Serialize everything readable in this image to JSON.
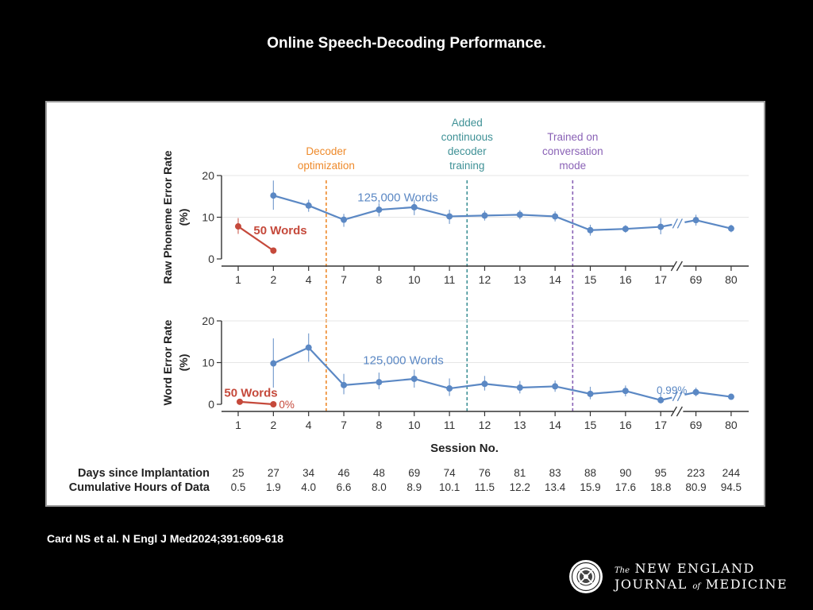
{
  "slide": {
    "title": "Online Speech-Decoding Performance.",
    "citation": "Card NS et al. N Engl J Med2024;391:609-618"
  },
  "journal": {
    "line1_prefix": "The",
    "line1_main": "NEW ENGLAND",
    "line2_main": "JOURNAL",
    "line2_of": "of",
    "line2_end": "MEDICINE"
  },
  "colors": {
    "blue": "#5b88c4",
    "red": "#c5493b",
    "orange": "#ee8a2b",
    "teal": "#3f9196",
    "purple": "#8a62b6",
    "axis": "#333333",
    "grid": "#e5e5e5"
  },
  "chart_data": {
    "type": "line",
    "x_axis_title": "Session No.",
    "sessions": [
      "1",
      "2",
      "4",
      "7",
      "8",
      "10",
      "11",
      "12",
      "13",
      "14",
      "15",
      "16",
      "17",
      "69",
      "80"
    ],
    "axis_break_between": [
      "17",
      "69"
    ],
    "table_rows": [
      {
        "label": "Days since Implantation",
        "values": [
          "25",
          "27",
          "34",
          "46",
          "48",
          "69",
          "74",
          "76",
          "81",
          "83",
          "88",
          "90",
          "95",
          "223",
          "244"
        ]
      },
      {
        "label": "Cumulative Hours of Data",
        "values": [
          "0.5",
          "1.9",
          "4.0",
          "6.6",
          "8.0",
          "8.9",
          "10.1",
          "11.5",
          "12.2",
          "13.4",
          "15.9",
          "17.6",
          "18.8",
          "80.9",
          "94.5"
        ]
      }
    ],
    "events": [
      {
        "label_lines": [
          "Decoder",
          "optimization"
        ],
        "between": [
          "4",
          "7"
        ],
        "color": "orange"
      },
      {
        "label_lines": [
          "Added",
          "continuous",
          "decoder",
          "training"
        ],
        "between": [
          "11",
          "12"
        ],
        "color": "teal"
      },
      {
        "label_lines": [
          "Trained on",
          "conversation",
          "mode"
        ],
        "between": [
          "14",
          "15"
        ],
        "color": "purple"
      }
    ],
    "panels": [
      {
        "ylabel_lines": [
          "Raw Phoneme Error Rate",
          "(%)"
        ],
        "ylim": [
          0,
          20
        ],
        "yticks": [
          "0",
          "10",
          "20"
        ],
        "series": [
          {
            "name": "50 Words",
            "color": "red",
            "sessions": [
              "1",
              "2"
            ],
            "values": [
              7.8,
              2.0
            ],
            "err_low": [
              6.0,
              1.2
            ],
            "err_high": [
              9.8,
              2.6
            ]
          },
          {
            "name": "125,000 Words",
            "color": "blue",
            "sessions": [
              "2",
              "4",
              "7",
              "8",
              "10",
              "11",
              "12",
              "13",
              "14",
              "15",
              "16",
              "17",
              "69",
              "80"
            ],
            "values": [
              15.2,
              12.8,
              9.4,
              11.8,
              12.4,
              10.2,
              10.4,
              10.6,
              10.2,
              6.9,
              7.2,
              7.7,
              9.3,
              7.3
            ],
            "err_low": [
              11.8,
              11.3,
              7.7,
              10.2,
              10.5,
              8.4,
              9.2,
              9.5,
              9.0,
              5.6,
              6.3,
              5.9,
              8.0,
              6.4
            ],
            "err_high": [
              18.8,
              14.2,
              10.8,
              13.3,
              14.2,
              11.8,
              11.6,
              11.7,
              11.4,
              8.2,
              8.1,
              9.8,
              10.6,
              8.2
            ]
          }
        ],
        "annotations": []
      },
      {
        "ylabel_lines": [
          "Word Error Rate",
          "(%)"
        ],
        "ylim": [
          0,
          20
        ],
        "yticks": [
          "0",
          "10",
          "20"
        ],
        "series": [
          {
            "name": "50 Words",
            "color": "red",
            "sessions": [
              "1",
              "2"
            ],
            "values": [
              0.6,
              0.0
            ],
            "err_low": [
              0.6,
              0.0
            ],
            "err_high": [
              0.6,
              0.0
            ]
          },
          {
            "name": "125,000 Words",
            "color": "blue",
            "sessions": [
              "2",
              "4",
              "7",
              "8",
              "10",
              "11",
              "12",
              "13",
              "14",
              "15",
              "16",
              "17",
              "69",
              "80"
            ],
            "values": [
              9.8,
              13.6,
              4.6,
              5.3,
              6.1,
              3.8,
              4.9,
              4.0,
              4.3,
              2.5,
              3.2,
              0.99,
              2.9,
              1.8
            ],
            "err_low": [
              4.0,
              10.2,
              2.4,
              3.6,
              4.0,
              2.0,
              3.3,
              2.6,
              3.0,
              1.2,
              1.9,
              0.2,
              1.9,
              1.2
            ],
            "err_high": [
              15.8,
              17.0,
              7.3,
              7.6,
              8.3,
              6.2,
              6.8,
              5.6,
              5.7,
              4.2,
              4.5,
              2.6,
              4.0,
              2.4
            ]
          }
        ],
        "annotations": [
          {
            "text": "0%",
            "session": "2",
            "value": 0.0,
            "color": "red"
          },
          {
            "text": "0.99%",
            "session": "17",
            "value": 0.99,
            "color": "blue"
          }
        ]
      }
    ]
  }
}
